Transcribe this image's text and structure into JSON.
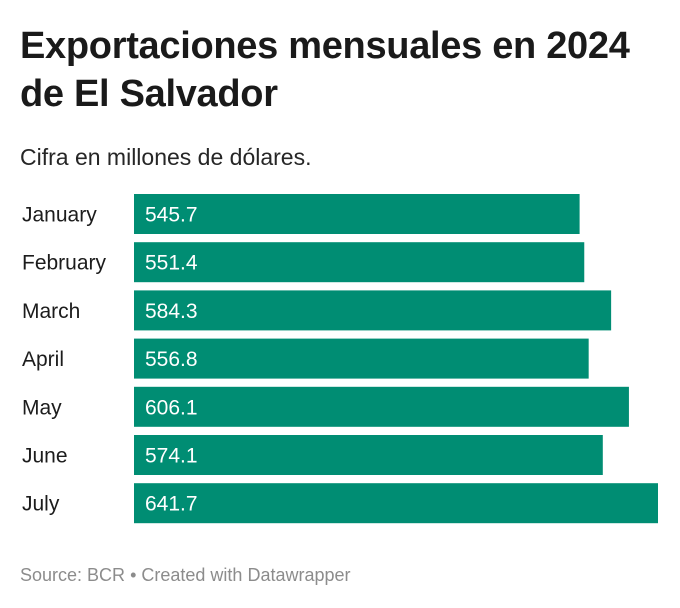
{
  "header": {
    "title": "Exportaciones mensuales en 2024 de El Salvador",
    "subtitle": "Cifra en millones de dólares."
  },
  "footer": {
    "source_label": "Source: BCR",
    "separator": "•",
    "credit": "Created with Datawrapper"
  },
  "colors": {
    "bar": "#008d73",
    "value_text": "#ffffff"
  },
  "chart_data": {
    "type": "bar",
    "orientation": "horizontal",
    "categories": [
      "January",
      "February",
      "March",
      "April",
      "May",
      "June",
      "July"
    ],
    "values": [
      545.7,
      551.4,
      584.3,
      556.8,
      606.1,
      574.1,
      641.7
    ],
    "title": "Exportaciones mensuales en 2024 de El Salvador",
    "subtitle": "Cifra en millones de dólares.",
    "xlabel": "",
    "ylabel": "",
    "xlim": [
      0,
      641.7
    ],
    "grid": false,
    "legend": "none",
    "data_labels": "inside-left"
  }
}
